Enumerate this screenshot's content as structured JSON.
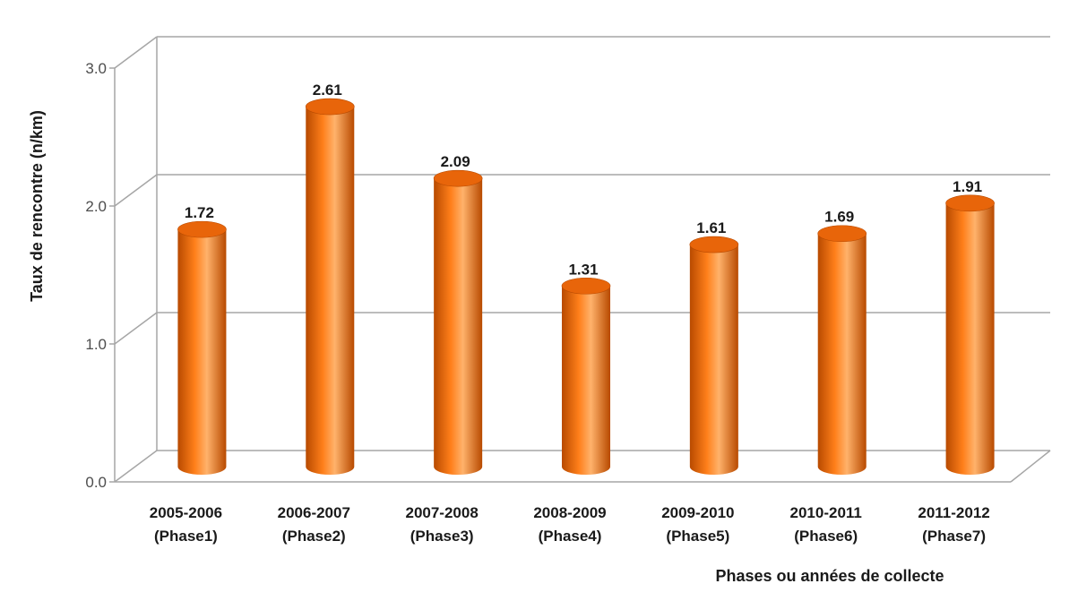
{
  "chart_data": {
    "type": "bar",
    "title": "",
    "xlabel": "Phases ou années de collecte",
    "ylabel": "Taux de rencontre (n/km)",
    "ylim": [
      0,
      3
    ],
    "yticks": [
      "0.0",
      "1.0",
      "2.0",
      "3.0"
    ],
    "yticks_values": [
      0,
      1,
      2,
      3
    ],
    "grid": true,
    "legend": "none",
    "categories": [
      [
        "2005-2006",
        "(Phase1)"
      ],
      [
        "2006-2007",
        "(Phase2)"
      ],
      [
        "2007-2008",
        "(Phase3)"
      ],
      [
        "2008-2009",
        "(Phase4)"
      ],
      [
        "2009-2010",
        "(Phase5)"
      ],
      [
        "2010-2011",
        "(Phase6)"
      ],
      [
        "2011-2012",
        "(Phase7)"
      ]
    ],
    "values": [
      1.72,
      2.61,
      2.09,
      1.31,
      1.61,
      1.69,
      1.91
    ],
    "value_labels": [
      "1.72",
      "2.61",
      "2.09",
      "1.31",
      "1.61",
      "1.69",
      "1.91"
    ],
    "colors": {
      "bar_dark": "#b84a00",
      "bar_mid": "#ff7f1a",
      "bar_light": "#ffb26b",
      "bar_top": "#e8650a",
      "grid": "#a6a6a6",
      "tick_text": "#4d4d4d",
      "label_text": "#1a1a1a"
    }
  }
}
